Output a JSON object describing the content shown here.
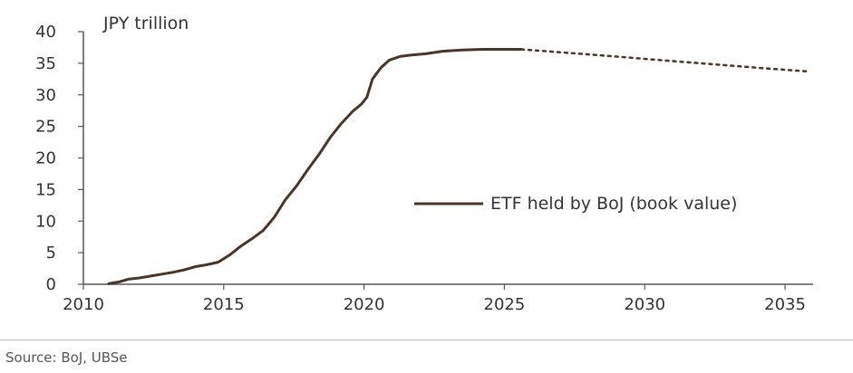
{
  "chart_data": {
    "type": "line",
    "ylabel": "JPY trillion",
    "ylim": [
      0,
      40
    ],
    "xlim": [
      2010,
      2036
    ],
    "yticks": [
      0,
      5,
      10,
      15,
      20,
      25,
      30,
      35,
      40
    ],
    "xticks": [
      2010,
      2015,
      2020,
      2025,
      2030,
      2035
    ],
    "grid": false,
    "legend_position": "right-middle",
    "series": [
      {
        "name": "ETF held by BoJ (book value)",
        "color": "#4a3528",
        "style": "solid",
        "x": [
          2010.9,
          2011.3,
          2011.6,
          2012.0,
          2012.4,
          2012.8,
          2013.2,
          2013.6,
          2014.0,
          2014.4,
          2014.8,
          2015.2,
          2015.6,
          2016.0,
          2016.4,
          2016.8,
          2017.2,
          2017.6,
          2018.0,
          2018.4,
          2018.8,
          2019.2,
          2019.6,
          2019.9,
          2020.1,
          2020.3,
          2020.6,
          2020.9,
          2021.3,
          2021.7,
          2022.2,
          2022.8,
          2023.5,
          2024.2,
          2025.0,
          2025.6
        ],
        "y": [
          0.1,
          0.4,
          0.8,
          1.0,
          1.3,
          1.6,
          1.9,
          2.3,
          2.8,
          3.1,
          3.5,
          4.6,
          6.0,
          7.2,
          8.5,
          10.6,
          13.4,
          15.6,
          18.2,
          20.6,
          23.3,
          25.5,
          27.4,
          28.5,
          29.6,
          32.5,
          34.3,
          35.5,
          36.1,
          36.3,
          36.5,
          36.9,
          37.1,
          37.2,
          37.2,
          37.2
        ]
      },
      {
        "name": "",
        "color": "#4a3528",
        "style": "dotted",
        "x": [
          2025.6,
          2028,
          2030,
          2032,
          2034,
          2035.8
        ],
        "y": [
          37.2,
          36.4,
          35.7,
          35.0,
          34.3,
          33.7
        ]
      }
    ]
  },
  "source": "Source: BoJ, UBSe"
}
